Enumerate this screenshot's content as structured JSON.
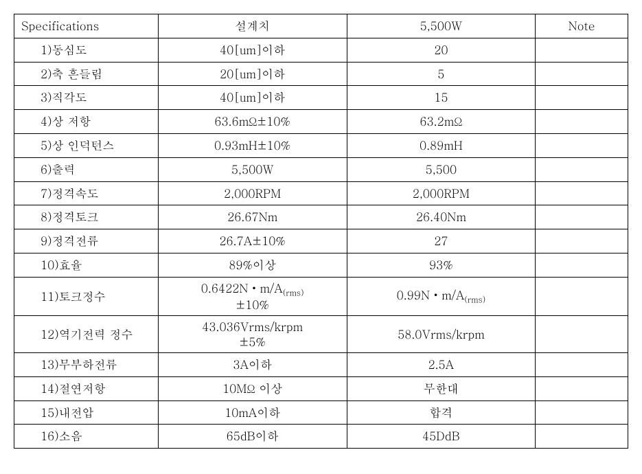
{
  "table": {
    "headers": {
      "spec": "Specifications",
      "design": "설계치",
      "value": "5,500W",
      "note": "Note"
    },
    "rows": [
      {
        "spec": "1)동심도",
        "design": "40[um]이하",
        "value": "20",
        "note": ""
      },
      {
        "spec": "2)축 흔들림",
        "design": "20[um]이하",
        "value": "5",
        "note": ""
      },
      {
        "spec": "3)직각도",
        "design": "40[um]이하",
        "value": "15",
        "note": ""
      },
      {
        "spec": "4)상 저항",
        "design": "63.6mΩ±10%",
        "value": "63.2mΩ",
        "note": ""
      },
      {
        "spec": "5)상 인덕턴스",
        "design": "0.93mH±10%",
        "value": "0.89mH",
        "note": ""
      },
      {
        "spec": "6)출력",
        "design": "5,500W",
        "value": "5,500",
        "note": ""
      },
      {
        "spec": "7)정격속도",
        "design": "2,000RPM",
        "value": "2,000RPM",
        "note": ""
      },
      {
        "spec": "8)정격토크",
        "design": "26.67Nm",
        "value": "26.40Nm",
        "note": ""
      },
      {
        "spec": "9)정격전류",
        "design": "26.7A±10%",
        "value": "27",
        "note": ""
      },
      {
        "spec": "10)효율",
        "design": "89%이상",
        "value": "93%",
        "note": ""
      },
      {
        "spec": "11)토크정수",
        "design_line1": "0.6422N・m/A",
        "design_sub1": "(rms)",
        "design_line2": "±10%",
        "value_line1": "0.99N・m/A",
        "value_sub1": "(rms)",
        "note": "",
        "multiline": true
      },
      {
        "spec": "12)역기전력 정수",
        "design_line1": "43.036Vrms/krpm",
        "design_line2": "±5%",
        "value": "58.0Vrms/krpm",
        "note": "",
        "multiline_design": true
      },
      {
        "spec": "13)무부하전류",
        "design": "3A이하",
        "value": "2.5A",
        "note": ""
      },
      {
        "spec": "14)절연저항",
        "design": "10MΩ 이상",
        "value": "무한대",
        "note": ""
      },
      {
        "spec": "15)내전압",
        "design": "10mA이하",
        "value": "합격",
        "note": ""
      },
      {
        "spec": "16)소음",
        "design": "65dB이하",
        "value": "45DdB",
        "note": ""
      }
    ]
  }
}
